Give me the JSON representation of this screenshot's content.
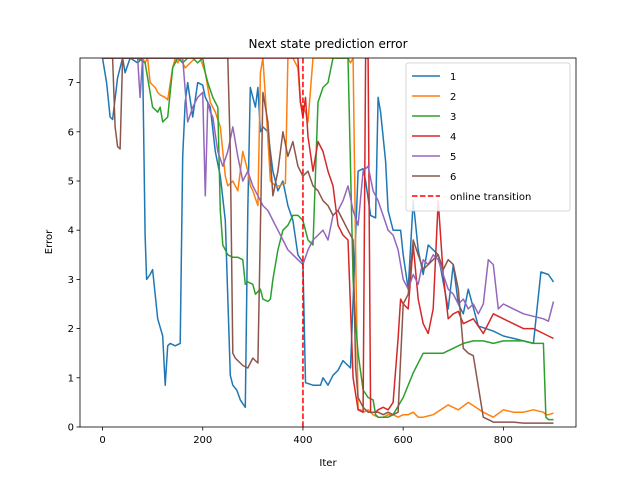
{
  "chart_data": {
    "type": "line",
    "title": "Next state prediction error",
    "xlabel": "Iter",
    "ylabel": "Error",
    "xlim": [
      -45,
      945
    ],
    "ylim": [
      0,
      7.5
    ],
    "xticks": [
      0,
      200,
      400,
      600,
      800
    ],
    "yticks": [
      0,
      1,
      2,
      3,
      4,
      5,
      6,
      7
    ],
    "grid": false,
    "legend_position": "top-right",
    "series": [
      {
        "name": "1",
        "color": "#1f77b4",
        "x": [
          0,
          8,
          15,
          20,
          30,
          40,
          45,
          55,
          70,
          80,
          85,
          88,
          95,
          100,
          110,
          120,
          125,
          130,
          135,
          145,
          155,
          160,
          165,
          170,
          180,
          190,
          200,
          205,
          215,
          225,
          235,
          245,
          255,
          260,
          268,
          275,
          285,
          290,
          295,
          305,
          310,
          315,
          320,
          330,
          340,
          350,
          355,
          360,
          370,
          380,
          390,
          400,
          405,
          420,
          435,
          440,
          450,
          460,
          470,
          480,
          495,
          510,
          520,
          525,
          535,
          545,
          550,
          555,
          560,
          565,
          570,
          580,
          595,
          600,
          610,
          620,
          630,
          640,
          650,
          670,
          690,
          700,
          710,
          720,
          730,
          750,
          765,
          780,
          800,
          820,
          840,
          860,
          875,
          890,
          900
        ],
        "y": [
          7.5,
          7.0,
          6.3,
          6.25,
          7.1,
          7.5,
          7.2,
          7.5,
          7.4,
          7.5,
          3.9,
          3.0,
          3.1,
          3.2,
          2.2,
          1.85,
          0.85,
          1.65,
          1.7,
          1.65,
          1.7,
          5.5,
          6.6,
          7.0,
          6.3,
          7.0,
          6.95,
          6.7,
          6.5,
          5.6,
          5.1,
          4.2,
          1.05,
          0.85,
          0.75,
          0.55,
          0.4,
          4.4,
          6.9,
          6.5,
          6.9,
          6.0,
          6.1,
          6.0,
          5.2,
          4.8,
          4.9,
          5.0,
          4.5,
          4.2,
          3.5,
          3.35,
          0.9,
          0.85,
          0.85,
          1.0,
          0.85,
          1.05,
          1.15,
          1.35,
          1.2,
          5.2,
          5.25,
          5.0,
          4.3,
          4.25,
          6.7,
          6.4,
          5.9,
          5.4,
          4.4,
          4.0,
          4.0,
          3.5,
          2.8,
          4.6,
          3.6,
          3.1,
          3.7,
          3.5,
          2.4,
          3.3,
          2.5,
          2.3,
          2.8,
          2.05,
          2.0,
          1.95,
          1.85,
          1.8,
          1.75,
          1.7,
          3.15,
          3.1,
          2.95
        ]
      },
      {
        "name": "2",
        "color": "#ff7f0e",
        "x": [
          0,
          10,
          20,
          30,
          45,
          55,
          70,
          80,
          85,
          90,
          95,
          105,
          110,
          115,
          125,
          130,
          140,
          145,
          150,
          155,
          165,
          175,
          185,
          195,
          205,
          215,
          225,
          235,
          245,
          250,
          260,
          270,
          280,
          290,
          295,
          300,
          310,
          315,
          320,
          325,
          335,
          345,
          355,
          360,
          365,
          370,
          380,
          390,
          395,
          405,
          410,
          420,
          430,
          440,
          450,
          460,
          470,
          480,
          490,
          495,
          500,
          505,
          510,
          515,
          520,
          530,
          540,
          550,
          560,
          570,
          580,
          590,
          600,
          610,
          620,
          630,
          640,
          660,
          675,
          690,
          710,
          730,
          760,
          780,
          800,
          820,
          840,
          860,
          880,
          885,
          890,
          900
        ],
        "y": [
          7.5,
          7.5,
          7.5,
          7.5,
          7.5,
          7.5,
          7.5,
          7.5,
          7.4,
          7.5,
          7.0,
          6.9,
          6.8,
          6.75,
          6.7,
          6.65,
          7.3,
          7.5,
          7.4,
          7.5,
          7.3,
          7.4,
          7.5,
          7.5,
          7.2,
          6.6,
          6.4,
          6.1,
          5.1,
          4.9,
          5.0,
          4.8,
          5.6,
          5.2,
          4.9,
          4.8,
          4.5,
          7.2,
          7.5,
          6.7,
          5.0,
          4.9,
          4.9,
          4.95,
          4.95,
          7.5,
          7.5,
          7.3,
          6.6,
          6.4,
          6.2,
          7.5,
          7.5,
          7.5,
          7.5,
          7.5,
          7.5,
          7.5,
          7.5,
          7.4,
          7.5,
          3.6,
          0.35,
          0.35,
          0.3,
          0.35,
          0.25,
          0.2,
          0.2,
          0.25,
          0.25,
          0.2,
          0.25,
          0.25,
          0.3,
          0.2,
          0.2,
          0.25,
          0.35,
          0.45,
          0.35,
          0.5,
          0.3,
          0.2,
          0.35,
          0.3,
          0.3,
          0.35,
          0.3,
          0.25,
          0.25,
          0.28
        ]
      },
      {
        "name": "3",
        "color": "#2ca02c",
        "x": [
          0,
          10,
          20,
          30,
          40,
          50,
          60,
          70,
          85,
          95,
          100,
          110,
          115,
          120,
          130,
          140,
          150,
          160,
          170,
          180,
          190,
          200,
          205,
          210,
          220,
          230,
          235,
          240,
          250,
          260,
          270,
          280,
          285,
          290,
          300,
          305,
          310,
          315,
          320,
          330,
          335,
          340,
          345,
          350,
          360,
          370,
          380,
          390,
          400,
          410,
          420,
          430,
          440,
          450,
          460,
          470,
          480,
          490,
          500,
          505,
          510,
          520,
          530,
          540,
          545,
          550,
          560,
          570,
          580,
          600,
          620,
          640,
          660,
          680,
          690,
          700,
          720,
          740,
          760,
          780,
          800,
          820,
          840,
          860,
          880,
          885,
          890,
          900
        ],
        "y": [
          7.5,
          7.5,
          7.5,
          7.5,
          7.5,
          7.5,
          7.5,
          7.5,
          7.4,
          6.8,
          6.5,
          6.4,
          6.5,
          6.2,
          6.3,
          7.3,
          7.5,
          7.4,
          7.5,
          7.5,
          7.4,
          7.5,
          7.2,
          7.0,
          6.7,
          6.5,
          4.4,
          3.7,
          3.5,
          3.45,
          3.45,
          3.4,
          2.9,
          2.95,
          2.9,
          2.7,
          2.75,
          2.8,
          2.6,
          2.55,
          2.6,
          3.0,
          3.3,
          3.6,
          4.0,
          4.1,
          4.3,
          4.3,
          4.2,
          3.8,
          3.7,
          6.6,
          6.9,
          7.0,
          7.5,
          7.5,
          7.5,
          7.5,
          3.0,
          2.1,
          1.5,
          0.75,
          0.6,
          0.55,
          0.25,
          0.2,
          0.2,
          0.2,
          0.25,
          0.6,
          1.1,
          1.5,
          1.5,
          1.5,
          1.55,
          1.6,
          1.7,
          1.75,
          1.75,
          1.7,
          1.75,
          1.75,
          1.75,
          1.7,
          1.7,
          0.2,
          0.15,
          0.15
        ]
      },
      {
        "name": "4",
        "color": "#d62728",
        "x": [
          0,
          20,
          40,
          60,
          80,
          100,
          120,
          140,
          160,
          180,
          200,
          220,
          240,
          260,
          280,
          290,
          300,
          310,
          320,
          330,
          340,
          350,
          360,
          370,
          380,
          390,
          395,
          400,
          405,
          410,
          420,
          430,
          440,
          450,
          460,
          470,
          480,
          490,
          500,
          510,
          520,
          525,
          530,
          535,
          540,
          545,
          550,
          560,
          570,
          580,
          590,
          595,
          600,
          610,
          620,
          630,
          640,
          650,
          660,
          670,
          680,
          690,
          700,
          710,
          720,
          740,
          760,
          780,
          800,
          820,
          840,
          860,
          880,
          890,
          900
        ],
        "y": [
          7.5,
          7.5,
          7.5,
          7.5,
          7.5,
          7.5,
          7.5,
          7.5,
          7.5,
          7.5,
          7.5,
          7.5,
          7.5,
          7.5,
          7.5,
          7.5,
          7.5,
          7.5,
          7.5,
          7.5,
          7.5,
          7.5,
          7.5,
          7.5,
          7.5,
          7.5,
          6.6,
          6.3,
          6.7,
          5.9,
          5.2,
          5.8,
          5.6,
          5.2,
          4.9,
          4.1,
          3.9,
          3.8,
          1.0,
          0.35,
          0.3,
          7.5,
          7.5,
          0.3,
          0.3,
          0.3,
          0.35,
          0.4,
          0.35,
          0.5,
          1.8,
          2.6,
          2.5,
          2.4,
          3.7,
          2.6,
          2.1,
          1.9,
          2.4,
          4.6,
          3.1,
          2.2,
          2.3,
          2.35,
          2.1,
          2.2,
          1.9,
          2.3,
          2.2,
          2.1,
          2.0,
          2.0,
          1.9,
          1.85,
          1.8
        ]
      },
      {
        "name": "5",
        "color": "#9467bd",
        "x": [
          0,
          20,
          40,
          60,
          70,
          75,
          80,
          100,
          120,
          140,
          160,
          170,
          180,
          190,
          200,
          205,
          210,
          215,
          220,
          230,
          240,
          250,
          260,
          270,
          280,
          290,
          300,
          310,
          320,
          330,
          340,
          350,
          360,
          370,
          380,
          390,
          400,
          410,
          420,
          430,
          440,
          450,
          460,
          470,
          480,
          490,
          500,
          510,
          520,
          530,
          540,
          550,
          560,
          570,
          580,
          590,
          600,
          610,
          620,
          630,
          640,
          650,
          660,
          670,
          680,
          690,
          700,
          710,
          720,
          730,
          740,
          750,
          760,
          770,
          780,
          790,
          800,
          820,
          840,
          860,
          880,
          890,
          900
        ],
        "y": [
          7.5,
          7.5,
          7.5,
          7.5,
          7.5,
          6.7,
          7.5,
          7.5,
          7.5,
          7.5,
          7.5,
          6.2,
          6.5,
          6.7,
          6.8,
          4.7,
          6.6,
          6.4,
          6.3,
          5.6,
          5.3,
          5.6,
          6.1,
          5.5,
          5.0,
          5.2,
          4.9,
          4.7,
          4.5,
          4.4,
          4.2,
          4.0,
          3.8,
          3.6,
          3.5,
          3.4,
          3.3,
          3.6,
          3.8,
          3.9,
          4.0,
          3.8,
          4.3,
          4.4,
          4.6,
          4.9,
          4.4,
          4.1,
          5.2,
          5.3,
          4.8,
          4.6,
          4.3,
          4.0,
          3.9,
          3.6,
          3.0,
          2.8,
          3.1,
          2.9,
          3.4,
          3.3,
          3.5,
          3.4,
          3.1,
          2.8,
          2.7,
          2.5,
          2.6,
          2.4,
          2.5,
          2.3,
          2.5,
          3.4,
          3.3,
          2.4,
          2.5,
          2.4,
          2.3,
          2.25,
          2.2,
          2.15,
          2.55
        ]
      },
      {
        "name": "6",
        "color": "#8c564b",
        "x": [
          0,
          10,
          20,
          25,
          30,
          35,
          40,
          60,
          80,
          100,
          120,
          140,
          160,
          180,
          200,
          220,
          240,
          250,
          255,
          260,
          265,
          270,
          275,
          280,
          290,
          300,
          310,
          320,
          330,
          340,
          350,
          360,
          370,
          380,
          390,
          400,
          410,
          420,
          430,
          440,
          450,
          460,
          470,
          480,
          490,
          500,
          505,
          510,
          520,
          530,
          540,
          550,
          560,
          570,
          580,
          590,
          600,
          610,
          620,
          630,
          640,
          650,
          660,
          670,
          680,
          690,
          700,
          710,
          720,
          730,
          740,
          760,
          780,
          800,
          820,
          840,
          860,
          880,
          900
        ],
        "y": [
          7.5,
          7.5,
          7.5,
          6.1,
          5.7,
          5.65,
          7.5,
          7.5,
          7.5,
          7.5,
          7.5,
          7.5,
          7.5,
          7.5,
          7.5,
          7.5,
          7.5,
          7.5,
          5.6,
          1.5,
          1.4,
          1.35,
          1.3,
          1.25,
          1.2,
          1.4,
          1.3,
          6.8,
          6.2,
          4.7,
          5.2,
          6.0,
          5.5,
          5.8,
          5.3,
          5.1,
          5.2,
          4.9,
          4.8,
          4.6,
          4.5,
          4.3,
          4.4,
          4.2,
          4.0,
          3.8,
          1.2,
          0.6,
          0.4,
          0.3,
          0.3,
          0.3,
          0.25,
          0.3,
          0.25,
          0.3,
          2.5,
          2.7,
          3.8,
          3.5,
          3.2,
          3.3,
          3.4,
          3.5,
          3.2,
          3.4,
          3.3,
          2.8,
          1.6,
          1.5,
          1.45,
          0.2,
          0.1,
          0.1,
          0.1,
          0.08,
          0.08,
          0.08,
          0.08
        ]
      }
    ],
    "vline": {
      "name": "online transition",
      "x": 400,
      "color": "#ff0000",
      "style": "dashed"
    }
  }
}
